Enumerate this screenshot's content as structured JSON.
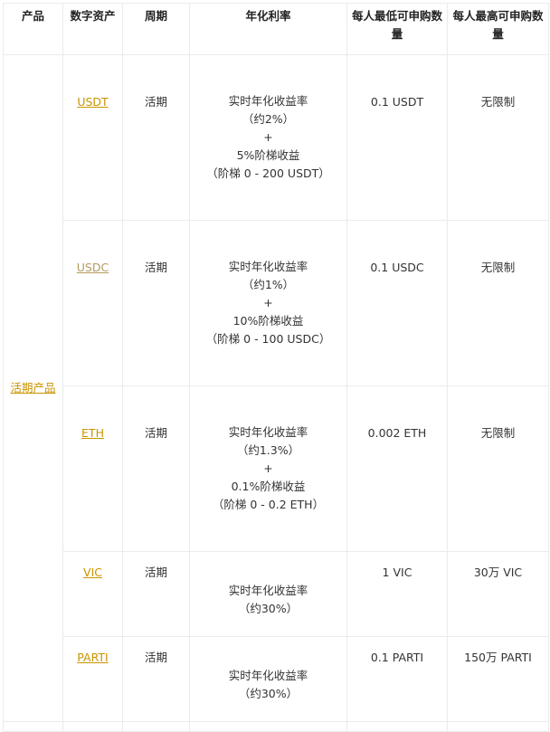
{
  "headers": [
    "产品",
    "数字资产",
    "周期",
    "年化利率",
    "每人最低可申购数量",
    "每人最高可申购数量"
  ],
  "product": "活期产品",
  "rows": [
    {
      "asset": "USDT",
      "period": "活期",
      "rate": [
        "实时年化收益率",
        "（约2%）",
        "+",
        "5%阶梯收益",
        "（阶梯 0 - 200 USDT）"
      ],
      "min": "0.1 USDT",
      "max": "无限制"
    },
    {
      "asset": "USDC",
      "period": "活期",
      "rate": [
        "实时年化收益率",
        "（约1%）",
        "+",
        "10%阶梯收益",
        "（阶梯 0 - 100 USDC）"
      ],
      "min": "0.1 USDC",
      "max": "无限制"
    },
    {
      "asset": "ETH",
      "period": "活期",
      "rate": [
        "实时年化收益率",
        "（约1.3%）",
        "+",
        "0.1%阶梯收益",
        "（阶梯 0 - 0.2 ETH）"
      ],
      "min": "0.002 ETH",
      "max": "无限制"
    },
    {
      "asset": "VIC",
      "period": "活期",
      "rate": [
        "实时年化收益率",
        "（约30%）"
      ],
      "min": "1 VIC",
      "max": "30万 VIC"
    },
    {
      "asset": "PARTI",
      "period": "活期",
      "rate": [
        "实时年化收益率",
        "（约30%）"
      ],
      "min": "0.1 PARTI",
      "max": "150万 PARTI"
    }
  ],
  "colors": {
    "link": "#c99400",
    "border": "#ebebeb"
  }
}
